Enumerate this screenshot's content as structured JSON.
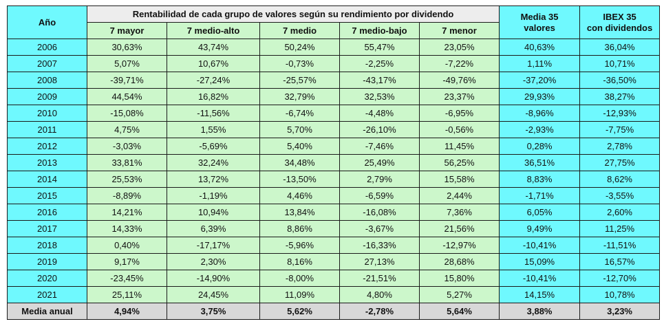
{
  "header": {
    "year_label": "Año",
    "group_title": "Rentabilidad de cada grupo de valores según su rendimiento por dividendo",
    "groups": [
      "7 mayor",
      "7 medio-alto",
      "7 medio",
      "7 medio-bajo",
      "7 menor"
    ],
    "media_line1": "Media 35",
    "media_line2": "valores",
    "ibex_line1": "IBEX 35",
    "ibex_line2": "con dividendos"
  },
  "rows": [
    {
      "year": "2006",
      "values": [
        "30,63%",
        "43,74%",
        "50,24%",
        "55,47%",
        "23,05%",
        "40,63%",
        "36,04%"
      ]
    },
    {
      "year": "2007",
      "values": [
        "5,07%",
        "10,67%",
        "-0,73%",
        "-2,25%",
        "-7,22%",
        "1,11%",
        "10,71%"
      ]
    },
    {
      "year": "2008",
      "values": [
        "-39,71%",
        "-27,24%",
        "-25,57%",
        "-43,17%",
        "-49,76%",
        "-37,20%",
        "-36,50%"
      ]
    },
    {
      "year": "2009",
      "values": [
        "44,54%",
        "16,82%",
        "32,79%",
        "32,53%",
        "23,37%",
        "29,93%",
        "38,27%"
      ]
    },
    {
      "year": "2010",
      "values": [
        "-15,08%",
        "-11,56%",
        "-6,74%",
        "-4,48%",
        "-6,95%",
        "-8,96%",
        "-12,93%"
      ]
    },
    {
      "year": "2011",
      "values": [
        "4,75%",
        "1,55%",
        "5,70%",
        "-26,10%",
        "-0,56%",
        "-2,93%",
        "-7,75%"
      ]
    },
    {
      "year": "2012",
      "values": [
        "-3,03%",
        "-5,69%",
        "5,40%",
        "-7,46%",
        "11,45%",
        "0,28%",
        "2,78%"
      ]
    },
    {
      "year": "2013",
      "values": [
        "33,81%",
        "32,24%",
        "34,48%",
        "25,49%",
        "56,25%",
        "36,51%",
        "27,75%"
      ]
    },
    {
      "year": "2014",
      "values": [
        "25,53%",
        "13,72%",
        "-13,50%",
        "2,79%",
        "15,58%",
        "8,83%",
        "8,62%"
      ]
    },
    {
      "year": "2015",
      "values": [
        "-8,89%",
        "-1,19%",
        "4,46%",
        "-6,59%",
        "2,44%",
        "-1,71%",
        "-3,55%"
      ]
    },
    {
      "year": "2016",
      "values": [
        "14,21%",
        "10,94%",
        "13,84%",
        "-16,08%",
        "7,36%",
        "6,05%",
        "2,60%"
      ]
    },
    {
      "year": "2017",
      "values": [
        "14,33%",
        "6,39%",
        "8,86%",
        "-3,67%",
        "21,56%",
        "9,49%",
        "11,25%"
      ]
    },
    {
      "year": "2018",
      "values": [
        "0,40%",
        "-17,17%",
        "-5,96%",
        "-16,33%",
        "-12,97%",
        "-10,41%",
        "-11,51%"
      ]
    },
    {
      "year": "2019",
      "values": [
        "9,17%",
        "2,30%",
        "8,16%",
        "27,13%",
        "28,68%",
        "15,09%",
        "16,57%"
      ]
    },
    {
      "year": "2020",
      "values": [
        "-23,45%",
        "-14,90%",
        "-8,00%",
        "-21,51%",
        "15,80%",
        "-10,41%",
        "-12,70%"
      ]
    },
    {
      "year": "2021",
      "values": [
        "25,11%",
        "24,45%",
        "11,09%",
        "4,80%",
        "5,27%",
        "14,15%",
        "10,78%"
      ]
    }
  ],
  "footer": {
    "label": "Media anual",
    "values": [
      "4,94%",
      "3,75%",
      "5,62%",
      "-2,78%",
      "5,64%",
      "3,88%",
      "3,23%"
    ]
  },
  "colors": {
    "cyan": "#6ff9fe",
    "green": "#ccf7cb",
    "header_gray": "#ededed",
    "footer_gray": "#d8d8d8"
  }
}
